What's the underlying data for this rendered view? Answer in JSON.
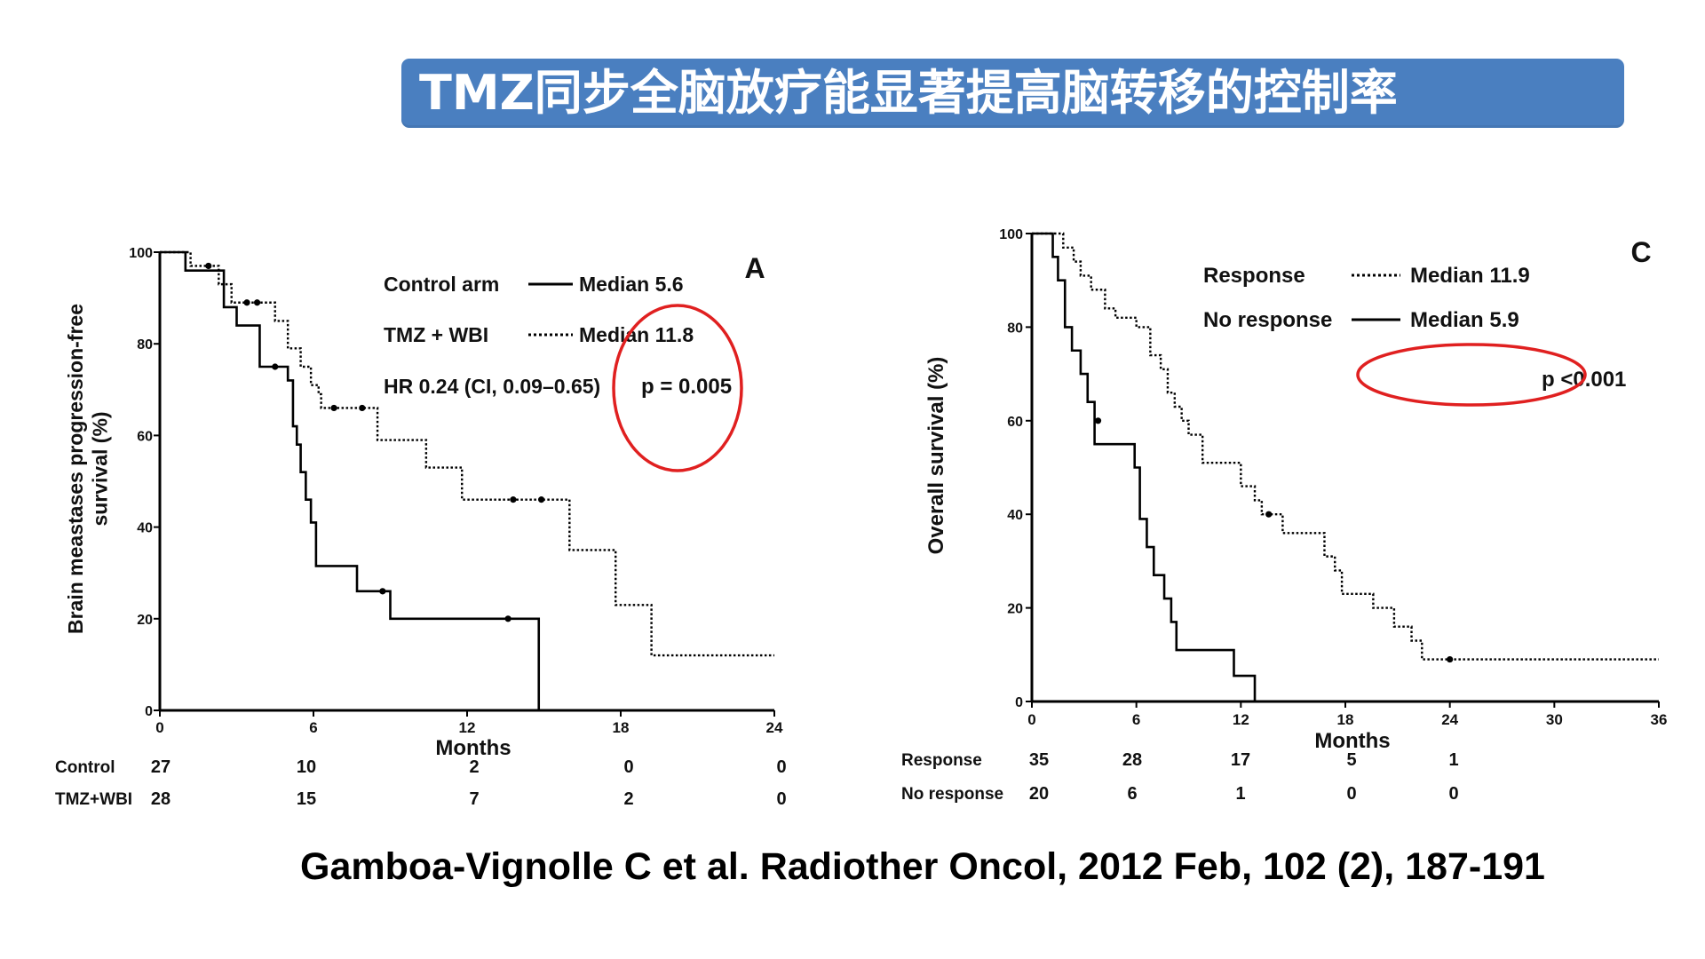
{
  "slide": {
    "title": "TMZ同步全脑放疗能显著提高脑转移的控制率",
    "citation": "Gamboa-Vignolle C et al. Radiother Oncol, 2012 Feb, 102 (2), 187-191",
    "banner_color": "#4a7fc0",
    "highlight_color": "#e02020"
  },
  "chart_data": [
    {
      "type": "line",
      "panel_label": "A",
      "ylabel": "Brain meastases progression-free survival (%)",
      "xlabel": "Months",
      "xlim": [
        0,
        24
      ],
      "ylim": [
        0,
        100
      ],
      "xticks": [
        0,
        6,
        12,
        18,
        24
      ],
      "yticks": [
        0,
        20,
        40,
        60,
        80,
        100
      ],
      "legend": [
        {
          "label": "Control arm",
          "style": "solid",
          "median_text": "Median  5.6"
        },
        {
          "label": "TMZ + WBI",
          "style": "dotted",
          "median_text": "Median 11.8"
        }
      ],
      "hr_text": "HR 0.24 (CI, 0.09–0.65)",
      "p_text": "p = 0.005",
      "series": [
        {
          "name": "Control arm",
          "style": "solid",
          "x": [
            0,
            1.0,
            2.5,
            3.0,
            3.9,
            5.0,
            5.2,
            5.35,
            5.5,
            5.7,
            5.9,
            6.1,
            7.7,
            9.0,
            14.8
          ],
          "y": [
            100,
            96,
            88,
            84,
            75,
            72,
            62,
            58,
            52,
            46,
            41,
            31.5,
            26,
            20,
            0
          ],
          "censored_x": [
            4.5,
            8.7,
            13.6
          ],
          "censored_y": [
            75,
            26,
            20
          ]
        },
        {
          "name": "TMZ + WBI",
          "style": "dotted",
          "x": [
            0,
            1.2,
            2.3,
            2.8,
            4.5,
            5.0,
            5.5,
            5.9,
            6.2,
            6.3,
            8.5,
            10.4,
            11.8,
            16.0,
            17.8,
            19.2,
            24.0
          ],
          "y": [
            100,
            97,
            93,
            89,
            85,
            79,
            75,
            71,
            69,
            66,
            59,
            53,
            46,
            35,
            23,
            12,
            12
          ],
          "censored_x": [
            1.9,
            3.4,
            3.8,
            6.8,
            7.9,
            13.8,
            14.9
          ],
          "censored_y": [
            97,
            89,
            89,
            66,
            66,
            46,
            46
          ]
        }
      ],
      "risk_table": {
        "label": "Months",
        "times": [
          0,
          6,
          12,
          18,
          24
        ],
        "rows": [
          {
            "name": "Control",
            "values": [
              "27",
              "10",
              "2",
              "0",
              "0"
            ]
          },
          {
            "name": "TMZ+WBI",
            "values": [
              "28",
              "15",
              "7",
              "2",
              "0"
            ]
          }
        ]
      }
    },
    {
      "type": "line",
      "panel_label": "C",
      "ylabel": "Overall survival (%)",
      "xlabel": "Months",
      "xlim": [
        0,
        36
      ],
      "ylim": [
        0,
        100
      ],
      "xticks": [
        0,
        6,
        12,
        18,
        24,
        30,
        36
      ],
      "yticks": [
        0,
        20,
        40,
        60,
        80,
        100
      ],
      "legend": [
        {
          "label": "Response",
          "style": "dotted",
          "median_text": "Median 11.9"
        },
        {
          "label": "No response",
          "style": "solid",
          "median_text": "Median  5.9"
        }
      ],
      "p_text": "p <0.001",
      "series": [
        {
          "name": "Response",
          "style": "dotted",
          "x": [
            0,
            1.8,
            2.4,
            2.8,
            3.4,
            4.2,
            4.8,
            6.0,
            6.8,
            7.4,
            7.8,
            8.2,
            8.6,
            9.0,
            9.8,
            12.0,
            12.8,
            13.2,
            14.4,
            16.8,
            17.4,
            17.8,
            19.6,
            20.8,
            21.8,
            22.4,
            36.0
          ],
          "y": [
            100,
            97,
            94,
            91,
            88,
            84,
            82,
            80,
            74,
            71,
            66,
            63,
            60,
            57,
            51,
            46,
            43,
            40,
            36,
            31,
            28,
            23,
            20,
            16,
            13,
            9,
            9
          ],
          "censored_x": [
            13.6,
            24.0
          ],
          "censored_y": [
            40,
            9
          ]
        },
        {
          "name": "No response",
          "style": "solid",
          "x": [
            0,
            1.2,
            1.5,
            1.9,
            2.3,
            2.8,
            3.2,
            3.6,
            5.9,
            6.2,
            6.6,
            7.0,
            7.6,
            8.0,
            8.3,
            11.6,
            12.8
          ],
          "y": [
            100,
            95,
            90,
            80,
            75,
            70,
            64,
            55,
            50,
            39,
            33,
            27,
            22,
            17,
            11,
            5.5,
            0
          ],
          "censored_x": [
            3.8
          ],
          "censored_y": [
            60
          ]
        }
      ],
      "risk_table": {
        "label": "Months",
        "times": [
          0,
          6,
          12,
          18,
          24
        ],
        "rows": [
          {
            "name": "Response",
            "values": [
              "35",
              "28",
              "17",
              "5",
              "1"
            ]
          },
          {
            "name": "No response",
            "values": [
              "20",
              "6",
              "1",
              "0",
              "0"
            ]
          }
        ]
      }
    }
  ]
}
